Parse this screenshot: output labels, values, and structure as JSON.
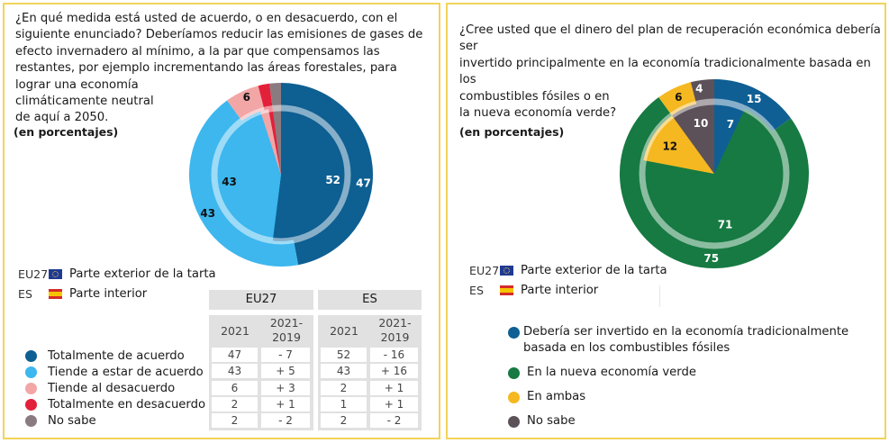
{
  "left_panel": {
    "question": "¿En qué medida está usted de acuerdo, o en desacuerdo, con el siguiente enunciado? Deberíamos reducir las emisiones de gases de efecto invernadero al mínimo, a la par que compensamos las restantes, por ejemplo incrementando las áreas forestales, para lograr una economía",
    "question_line5": "climáticamente neutral",
    "question_line6": "de aquí a 2050.",
    "unit": "(en porcentajes)",
    "legend_outer": {
      "code": "EU27",
      "label": "Parte exterior de la tarta",
      "icon": "eu-flag-icon"
    },
    "legend_inner": {
      "code": "ES",
      "label": "Parte interior",
      "icon": "es-flag-icon"
    },
    "table": {
      "groups": [
        "EU27",
        "ES"
      ],
      "columns": [
        "2021",
        "2021-\n2019",
        "2021",
        "2021-\n2019"
      ],
      "col_2021": "2021",
      "col_diff_1": "2021-",
      "col_diff_2": "2019",
      "rows": [
        {
          "eu_2021": "47",
          "eu_diff": "- 7",
          "es_2021": "52",
          "es_diff": "- 16"
        },
        {
          "eu_2021": "43",
          "eu_diff": "+ 5",
          "es_2021": "43",
          "es_diff": "+ 16"
        },
        {
          "eu_2021": "6",
          "eu_diff": "+ 3",
          "es_2021": "2",
          "es_diff": "+ 1"
        },
        {
          "eu_2021": "2",
          "eu_diff": "+ 1",
          "es_2021": "1",
          "es_diff": "+ 1"
        },
        {
          "eu_2021": "2",
          "eu_diff": "- 2",
          "es_2021": "2",
          "es_diff": "- 2"
        }
      ]
    }
  },
  "right_panel": {
    "question_line1": "¿Cree usted que el dinero del plan de recuperación económica debería ser",
    "question_line2": "invertido principalmente en la economía tradicionalmente basada en los",
    "question_line3": "combustibles fósiles o en",
    "question_line4": "la nueva economía verde?",
    "unit": "(en porcentajes)",
    "legend_outer": {
      "code": "EU27",
      "label": "Parte exterior de la tarta",
      "icon": "eu-flag-icon"
    },
    "legend_inner": {
      "code": "ES",
      "label": "Parte interior",
      "icon": "es-flag-icon"
    }
  },
  "chart_data": [
    {
      "type": "pie",
      "title": "¿En qué medida está usted de acuerdo, o en desacuerdo...? (en porcentajes)",
      "categories": [
        "Totalmente de acuerdo",
        "Tiende a estar de acuerdo",
        "Tiende al desacuerdo",
        "Totalmente en desacuerdo",
        "No sabe"
      ],
      "colors": [
        "#0e5f92",
        "#3db7ee",
        "#f2a6a6",
        "#e3203a",
        "#8a7b80"
      ],
      "series": [
        {
          "name": "EU27",
          "ring": "outer",
          "values": [
            47,
            43,
            6,
            2,
            2
          ],
          "labels": [
            "47",
            "43",
            "6",
            "",
            ""
          ]
        },
        {
          "name": "ES",
          "ring": "inner",
          "values": [
            52,
            43,
            2,
            1,
            2
          ],
          "labels": [
            "52",
            "43",
            "",
            "",
            ""
          ]
        }
      ]
    },
    {
      "type": "pie",
      "title": "¿Cree usted que el dinero del plan de recuperación económica...? (en porcentajes)",
      "categories": [
        "Debería ser invertido en la economía tradicionalmente basada en los combustibles fósiles",
        "En la nueva economía verde",
        "En ambas",
        "No sabe"
      ],
      "colors": [
        "#0f5f94",
        "#167a42",
        "#f5b820",
        "#5c5158"
      ],
      "series": [
        {
          "name": "EU27",
          "ring": "outer",
          "values": [
            15,
            75,
            6,
            4
          ],
          "labels": [
            "15",
            "75",
            "6",
            "4"
          ]
        },
        {
          "name": "ES",
          "ring": "inner",
          "values": [
            7,
            71,
            12,
            10
          ],
          "labels": [
            "7",
            "71",
            "12",
            "10"
          ]
        }
      ]
    }
  ]
}
